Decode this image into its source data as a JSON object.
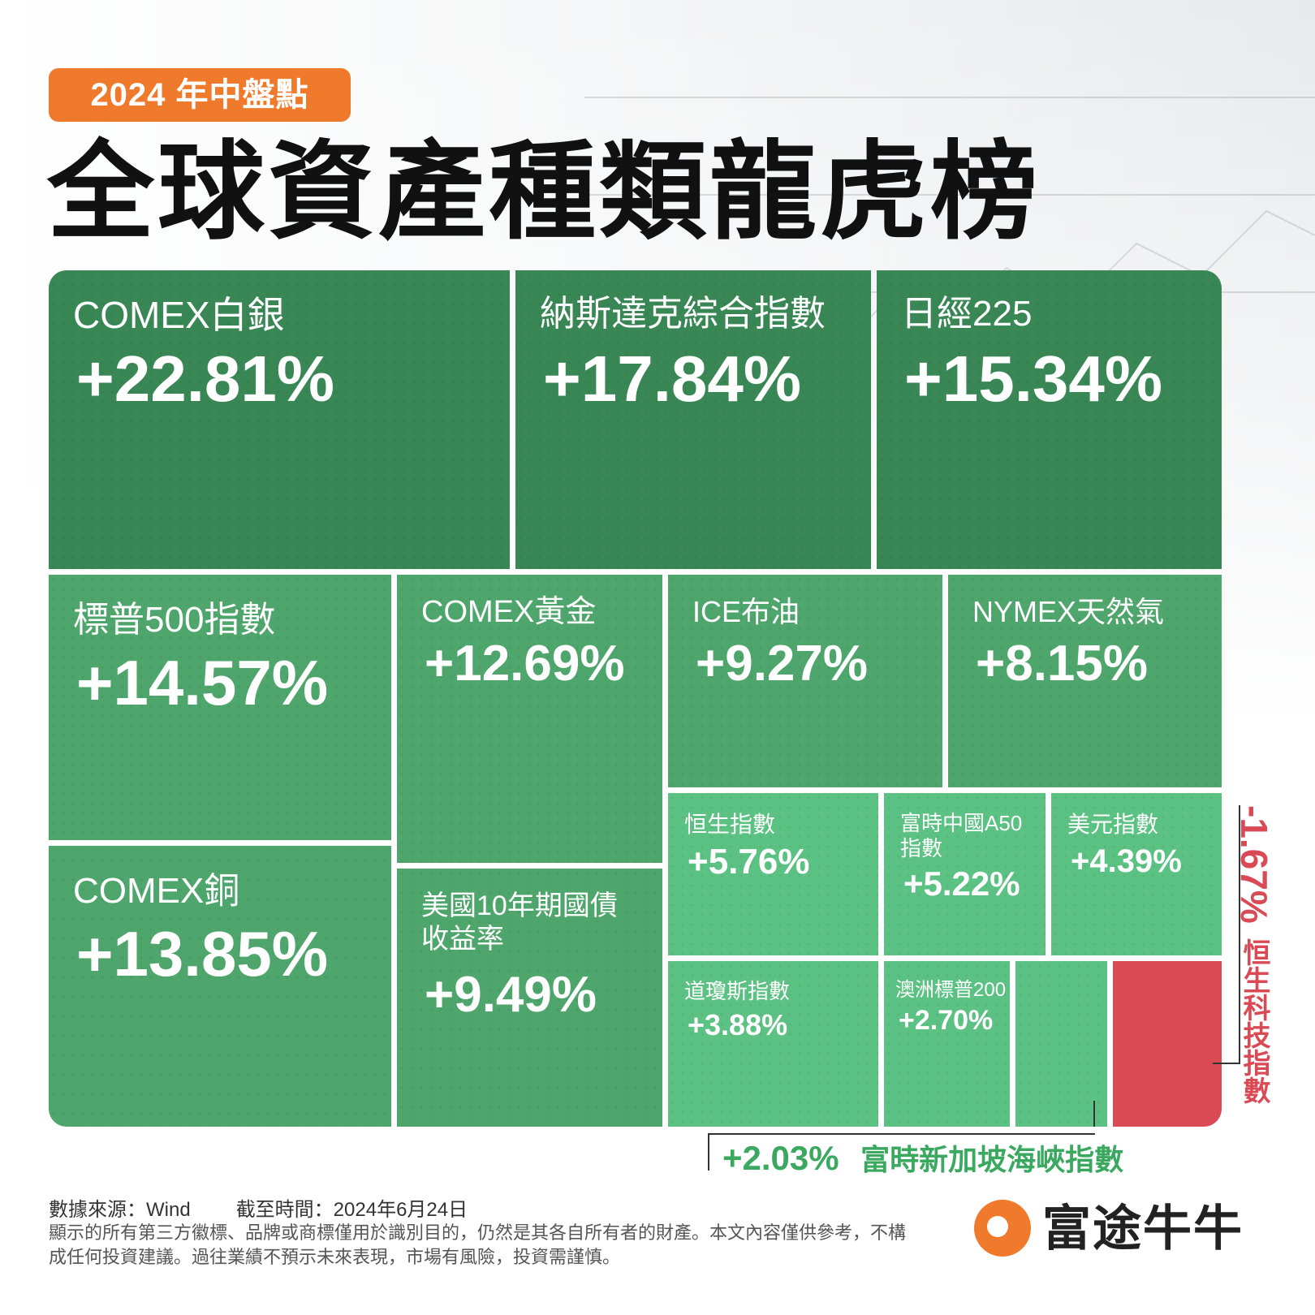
{
  "badge": "2024 年中盤點",
  "title": "全球資產種類龍虎榜",
  "chart_data": {
    "type": "treemap",
    "items": [
      {
        "name": "COMEX白銀",
        "value": 22.81,
        "label": "+22.81%"
      },
      {
        "name": "納斯達克綜合指數",
        "value": 17.84,
        "label": "+17.84%"
      },
      {
        "name": "日經225",
        "value": 15.34,
        "label": "+15.34%"
      },
      {
        "name": "標普500指數",
        "value": 14.57,
        "label": "+14.57%"
      },
      {
        "name": "COMEX銅",
        "value": 13.85,
        "label": "+13.85%"
      },
      {
        "name": "COMEX黃金",
        "value": 12.69,
        "label": "+12.69%"
      },
      {
        "name": "美國10年期國債\n收益率",
        "value": 9.49,
        "label": "+9.49%"
      },
      {
        "name": "ICE布油",
        "value": 9.27,
        "label": "+9.27%"
      },
      {
        "name": "NYMEX天然氣",
        "value": 8.15,
        "label": "+8.15%"
      },
      {
        "name": "恒生指數",
        "value": 5.76,
        "label": "+5.76%"
      },
      {
        "name": "富時中國A50\n指數",
        "value": 5.22,
        "label": "+5.22%"
      },
      {
        "name": "美元指數",
        "value": 4.39,
        "label": "+4.39%"
      },
      {
        "name": "道瓊斯指數",
        "value": 3.88,
        "label": "+3.88%"
      },
      {
        "name": "澳洲標普200",
        "value": 2.7,
        "label": "+2.70%"
      },
      {
        "name": "富時新加坡海峽指數",
        "value": 2.03,
        "label": "+2.03%"
      },
      {
        "name": "恒生科技指數",
        "value": -1.67,
        "label": "-1.67%"
      }
    ]
  },
  "footer": {
    "source": "數據來源：Wind",
    "date": "截至時間：2024年6月24日",
    "disclaimer": "顯示的所有第三方徽標、品牌或商標僅用於識別目的，仍然是其各自所有者的財產。本文內容僅供參考，不構成任何投資建議。過往業績不預示未來表現，市場有風險，投資需謹慎。"
  },
  "logo": {
    "text": "富途牛牛",
    "icon": "futu-bull-icon"
  },
  "colors": {
    "badge": "#f07a2b",
    "dark_green": "#3a8756",
    "mid_green": "#4fa66c",
    "light_green": "#5cc283",
    "negative_red": "#d94a55",
    "callout_green": "#3aa95f"
  }
}
